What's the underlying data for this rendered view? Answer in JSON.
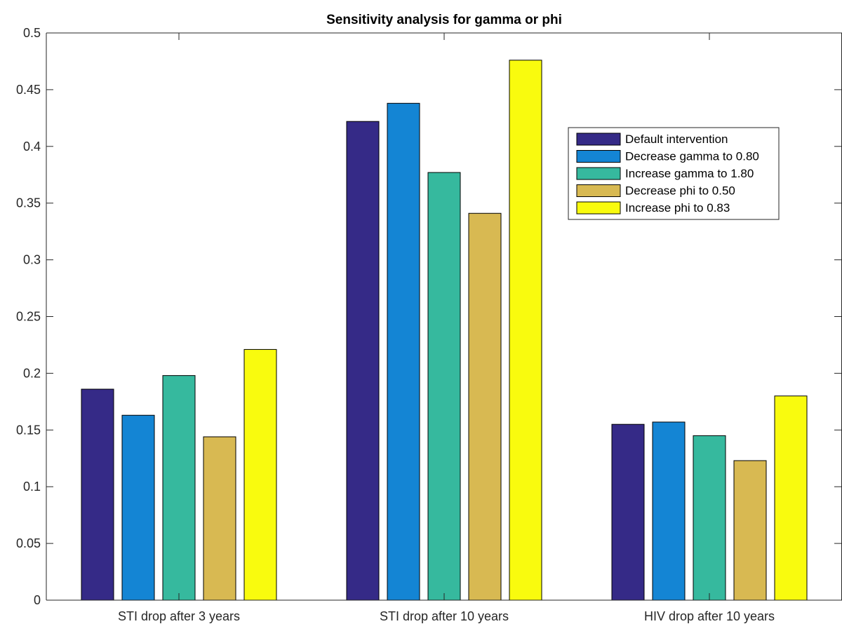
{
  "chart_data": {
    "type": "bar",
    "title": "Sensitivity analysis for gamma or phi",
    "xlabel": "",
    "ylabel": "",
    "ylim": [
      0,
      0.5
    ],
    "yticks": [
      0,
      0.05,
      0.1,
      0.15,
      0.2,
      0.25,
      0.3,
      0.35,
      0.4,
      0.45,
      0.5
    ],
    "ytick_labels": [
      "0",
      "0.05",
      "0.1",
      "0.15",
      "0.2",
      "0.25",
      "0.3",
      "0.35",
      "0.4",
      "0.45",
      "0.5"
    ],
    "categories": [
      "STI drop after 3 years",
      "STI drop after 10 years",
      "HIV drop after 10 years"
    ],
    "series": [
      {
        "name": "Default intervention",
        "color": "#352a87",
        "values": [
          0.186,
          0.422,
          0.155
        ]
      },
      {
        "name": "Decrease gamma to 0.80",
        "color": "#1485d4",
        "values": [
          0.163,
          0.438,
          0.157
        ]
      },
      {
        "name": "Increase gamma to 1.80",
        "color": "#36b99e",
        "values": [
          0.198,
          0.377,
          0.145
        ]
      },
      {
        "name": "Decrease phi to 0.50",
        "color": "#d8b952",
        "values": [
          0.144,
          0.341,
          0.123
        ]
      },
      {
        "name": "Increase phi to 0.83",
        "color": "#f9fb0e",
        "values": [
          0.221,
          0.476,
          0.18
        ]
      }
    ],
    "grid": false,
    "legend_position": "top-right"
  }
}
